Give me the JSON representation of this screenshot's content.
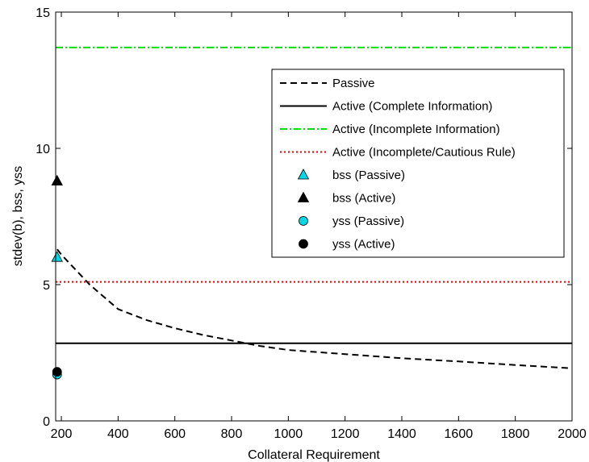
{
  "chart_data": {
    "type": "line",
    "title": "",
    "xlabel": "Collateral Requirement",
    "ylabel": "stdev(b), bss, yss",
    "xlim": [
      180,
      2000
    ],
    "ylim": [
      0,
      15
    ],
    "x_ticks": [
      200,
      400,
      600,
      800,
      1000,
      1200,
      1400,
      1600,
      1800,
      2000
    ],
    "y_ticks": [
      0,
      5,
      10,
      15
    ],
    "grid": false,
    "legend_position": "right",
    "series": [
      {
        "name": "Passive",
        "style": "dashed",
        "color": "#000000",
        "x": [
          185,
          200,
          300,
          400,
          500,
          600,
          700,
          800,
          900,
          1000,
          1200,
          1400,
          1600,
          1800,
          2000
        ],
        "y": [
          6.3,
          6.1,
          5.0,
          4.1,
          3.7,
          3.4,
          3.15,
          2.95,
          2.75,
          2.6,
          2.45,
          2.3,
          2.18,
          2.05,
          1.93
        ]
      },
      {
        "name": "Active (Complete Information)",
        "style": "solid",
        "color": "#000000",
        "x": [
          180,
          2000
        ],
        "y": [
          2.85,
          2.85
        ]
      },
      {
        "name": "Active (Incomplete Information)",
        "style": "dashdot",
        "color": "#00dd00",
        "x": [
          180,
          2000
        ],
        "y": [
          13.7,
          13.7
        ]
      },
      {
        "name": "Active (Incomplete/Cautious Rule)",
        "style": "dotted",
        "color": "#ee0000",
        "x": [
          180,
          2000
        ],
        "y": [
          5.1,
          5.1
        ]
      },
      {
        "name": "bss (Passive)",
        "style": "marker",
        "marker": "triangle",
        "color": "#00d8e8",
        "x": [
          185
        ],
        "y": [
          6.0
        ]
      },
      {
        "name": "bss (Active)",
        "style": "marker",
        "marker": "triangle",
        "color": "#000000",
        "x": [
          185
        ],
        "y": [
          8.8
        ]
      },
      {
        "name": "yss (Passive)",
        "style": "marker",
        "marker": "circle",
        "color": "#00d8e8",
        "x": [
          185
        ],
        "y": [
          1.7
        ]
      },
      {
        "name": "yss (Active)",
        "style": "marker",
        "marker": "circle",
        "color": "#000000",
        "x": [
          185
        ],
        "y": [
          1.8
        ]
      }
    ]
  }
}
